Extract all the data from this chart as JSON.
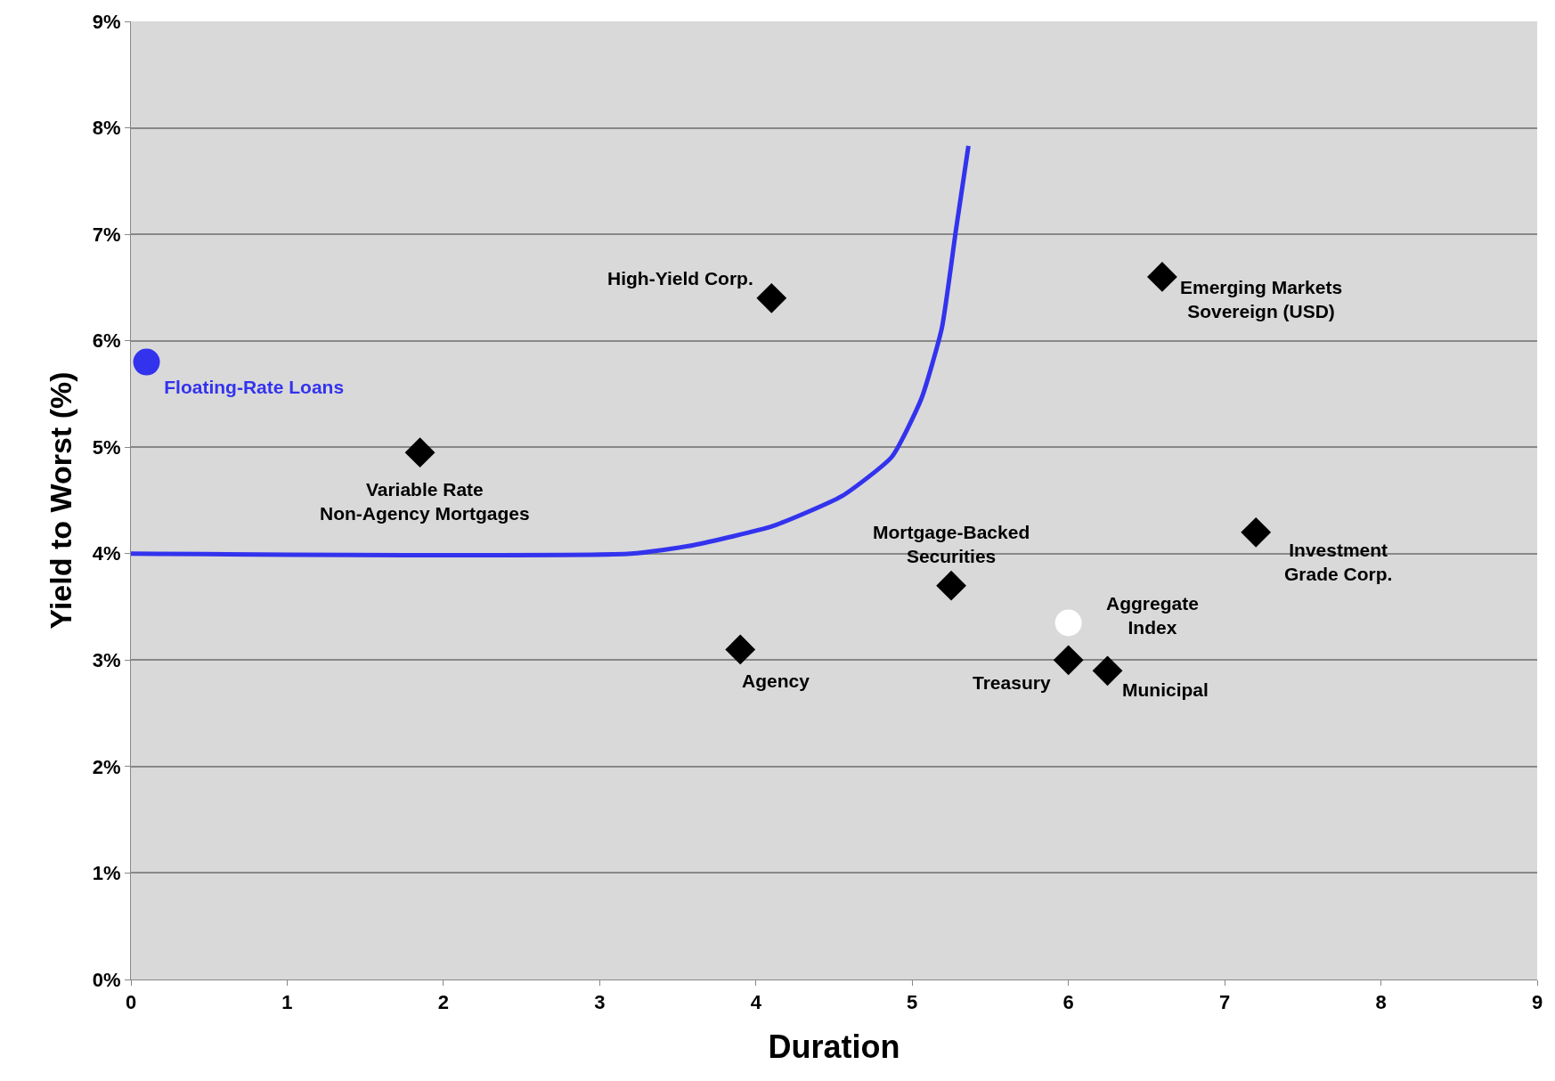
{
  "chart_data": {
    "type": "scatter",
    "xlabel": "Duration",
    "ylabel": "Yield to Worst (%)",
    "xlim": [
      0,
      9
    ],
    "xticks": [
      0,
      1,
      2,
      3,
      4,
      5,
      6,
      7,
      8,
      9
    ],
    "ylim": [
      0,
      9
    ],
    "yticks": [
      {
        "value": 0,
        "label": "0%"
      },
      {
        "value": 1,
        "label": "1%"
      },
      {
        "value": 2,
        "label": "2%"
      },
      {
        "value": 3,
        "label": "3%"
      },
      {
        "value": 4,
        "label": "4%"
      },
      {
        "value": 5,
        "label": "5%"
      },
      {
        "value": 6,
        "label": "6%"
      },
      {
        "value": 7,
        "label": "7%"
      },
      {
        "value": 8,
        "label": "8%"
      },
      {
        "value": 9,
        "label": "9%"
      }
    ],
    "grid": "y",
    "legend": false,
    "series": [
      {
        "type": "line",
        "color": "#3333ee",
        "marker": "none",
        "line_style": "solid",
        "x": [
          0,
          3.2,
          3.6,
          4.11,
          4.55,
          4.87,
          5.06,
          5.19,
          5.28,
          5.36
        ],
        "values": [
          4.0,
          4.0,
          4.08,
          4.26,
          4.54,
          4.91,
          5.46,
          6.12,
          7.04,
          7.83
        ]
      },
      {
        "name": "Floating-Rate Loans",
        "color": "#3333ee",
        "marker": "circle",
        "x": [
          0.1
        ],
        "values": [
          5.8
        ]
      },
      {
        "color": "#000000",
        "marker": "diamond",
        "x": [
          4.1,
          1.85,
          6.6,
          7.2,
          5.25,
          3.9,
          6.0,
          6.25
        ],
        "values": [
          6.4,
          4.95,
          6.6,
          4.2,
          3.7,
          3.1,
          3.0,
          2.9
        ]
      },
      {
        "color": "#ffffff",
        "marker": "circle",
        "x": [
          6.0
        ],
        "values": [
          3.35
        ]
      }
    ],
    "annotations": [
      {
        "text": "High-Yield Corp.",
        "x": 4.1,
        "y": 6.4
      },
      {
        "text": "Variable Rate\nNon-Agency Mortgages",
        "x": 1.85,
        "y": 4.95
      },
      {
        "text": "Emerging Markets\nSovereign (USD)",
        "x": 6.6,
        "y": 6.6
      },
      {
        "text": "Investment\nGrade Corp.",
        "x": 7.2,
        "y": 4.2
      },
      {
        "text": "Mortgage-Backed\nSecurities",
        "x": 5.25,
        "y": 3.7
      },
      {
        "text": "Agency",
        "x": 3.9,
        "y": 3.1
      },
      {
        "text": "Treasury",
        "x": 6.0,
        "y": 3.0
      },
      {
        "text": "Municipal",
        "x": 6.25,
        "y": 2.9
      },
      {
        "text": "Aggregate\nIndex",
        "x": 6.0,
        "y": 3.35
      }
    ]
  }
}
